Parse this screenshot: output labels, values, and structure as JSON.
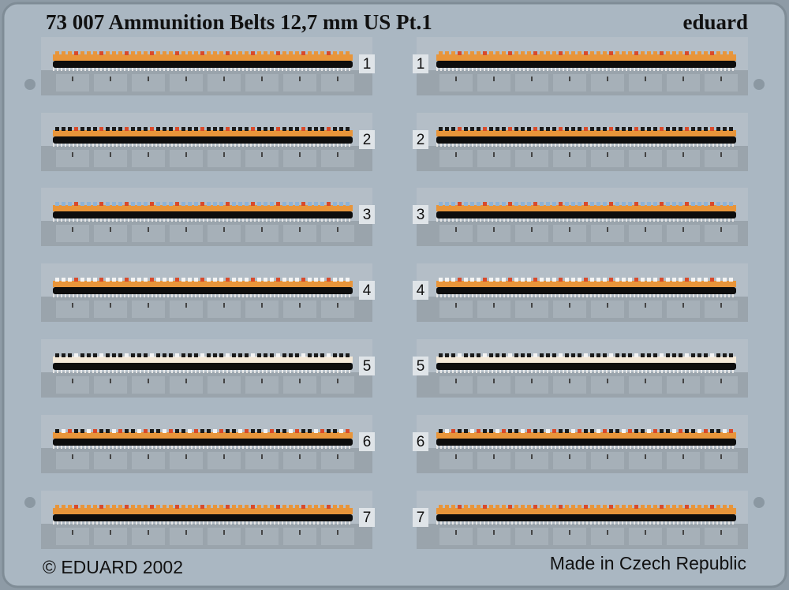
{
  "header": {
    "title": "73 007 Ammunition Belts 12,7 mm US Pt.1",
    "brand": "eduard"
  },
  "left_belts": [
    {
      "label": "1"
    },
    {
      "label": "2"
    },
    {
      "label": "3"
    },
    {
      "label": "4"
    },
    {
      "label": "5"
    },
    {
      "label": "6"
    },
    {
      "label": "7"
    }
  ],
  "right_belts": [
    {
      "label": "1"
    },
    {
      "label": "2"
    },
    {
      "label": "3"
    },
    {
      "label": "4"
    },
    {
      "label": "5"
    },
    {
      "label": "6"
    },
    {
      "label": "7"
    }
  ],
  "footer": {
    "copyright": "© EDUARD 2002",
    "origin": "Made in Czech Republic"
  }
}
